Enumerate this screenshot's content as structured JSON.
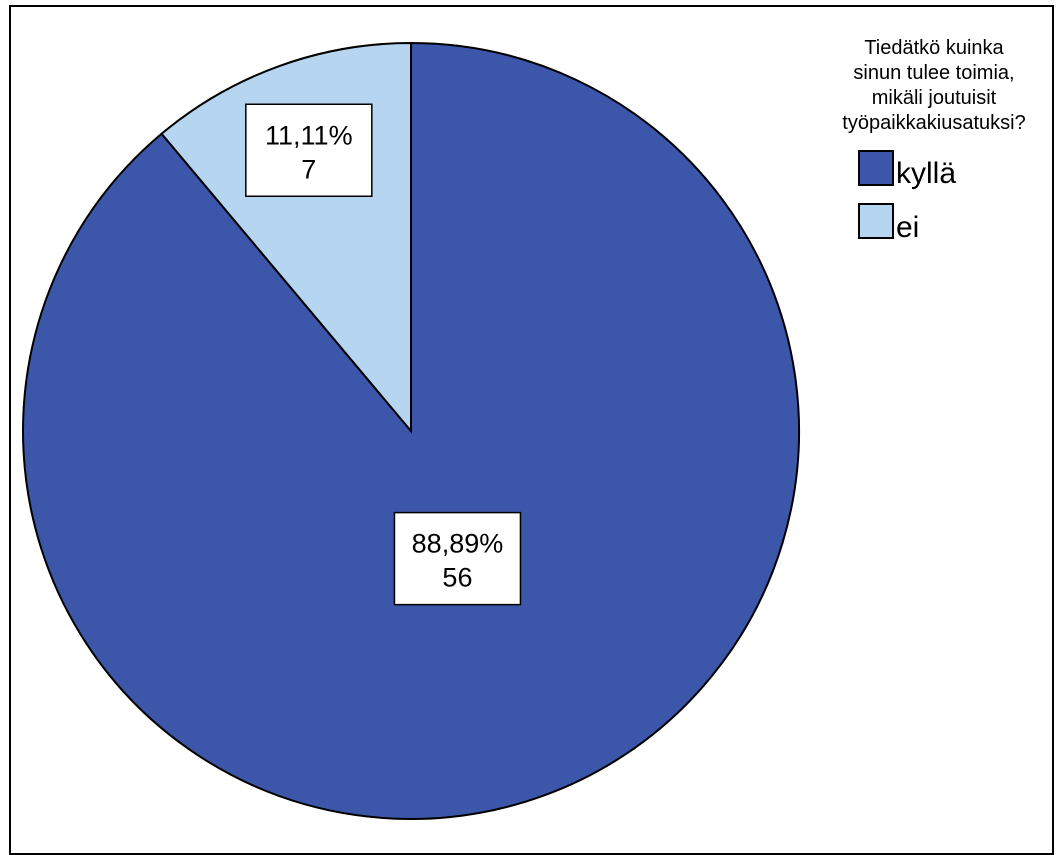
{
  "chart_data": {
    "type": "pie",
    "legend_title": [
      "Tiedätkö kuinka",
      "sinun tulee toimia,",
      "mikäli joutuisit",
      "työpaikkakiusatuksi?"
    ],
    "legend_position": "top-right",
    "slices": [
      {
        "label": "kyllä",
        "count": 56,
        "percent": "88,89%",
        "percent_value": 88.89,
        "color": "#3c56aa"
      },
      {
        "label": "ei",
        "count": 7,
        "percent": "11,11%",
        "percent_value": 11.11,
        "color": "#b5d5f1"
      }
    ],
    "start_angle_deg": 0,
    "direction": "clockwise"
  }
}
